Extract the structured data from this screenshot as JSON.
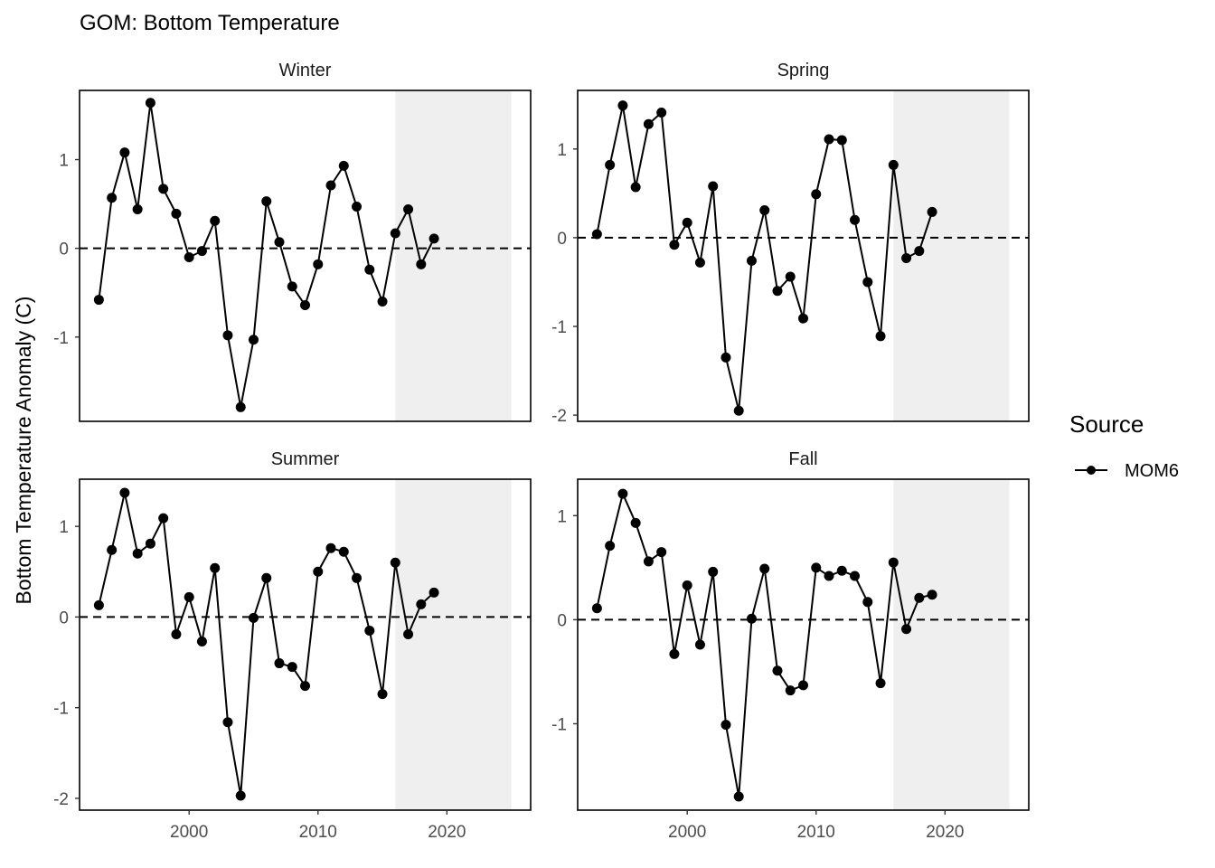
{
  "chart_data": {
    "type": "line",
    "title": "GOM: Bottom Temperature",
    "ylabel": "Bottom Temperature Anomaly (C)",
    "xlabel": "",
    "x_ticks": [
      2000,
      2010,
      2020
    ],
    "xlim": [
      1991.5,
      2026.5
    ],
    "shaded_region": [
      2016,
      2025
    ],
    "reference_line": 0,
    "legend": {
      "title": "Source",
      "entries": [
        "MOM6"
      ],
      "placement": "right"
    },
    "colors": {
      "series": "#000000",
      "shade": "#efefef",
      "panel_border": "#000000"
    },
    "years": [
      1993,
      1994,
      1995,
      1996,
      1997,
      1998,
      1999,
      2000,
      2001,
      2002,
      2003,
      2004,
      2005,
      2006,
      2007,
      2008,
      2009,
      2010,
      2011,
      2012,
      2013,
      2014,
      2015,
      2016,
      2017,
      2018,
      2019
    ],
    "panels": [
      {
        "name": "Winter",
        "ylim": [
          -1.95,
          1.78
        ],
        "y_ticks": [
          -1,
          0,
          1
        ],
        "y_tick_labels": [
          "-1",
          "0",
          "1"
        ],
        "values": [
          -0.58,
          0.57,
          1.08,
          0.44,
          1.64,
          0.67,
          0.39,
          -0.1,
          -0.03,
          0.31,
          -0.98,
          -1.79,
          -1.03,
          0.53,
          0.07,
          -0.43,
          -0.64,
          -0.18,
          0.71,
          0.93,
          0.47,
          -0.24,
          -0.6,
          0.17,
          0.44,
          -0.18,
          0.11
        ]
      },
      {
        "name": "Spring",
        "ylim": [
          -2.07,
          1.66
        ],
        "y_ticks": [
          -2,
          -1,
          0,
          1
        ],
        "y_tick_labels": [
          "-2",
          "-1",
          "0",
          "1"
        ],
        "values": [
          0.04,
          0.82,
          1.49,
          0.57,
          1.28,
          1.41,
          -0.08,
          0.17,
          -0.28,
          0.58,
          -1.35,
          -1.95,
          -0.26,
          0.31,
          -0.6,
          -0.44,
          -0.91,
          0.49,
          1.11,
          1.1,
          0.2,
          -0.5,
          -1.11,
          0.82,
          -0.23,
          -0.15,
          0.29
        ]
      },
      {
        "name": "Summer",
        "ylim": [
          -2.13,
          1.52
        ],
        "y_ticks": [
          -2,
          -1,
          0,
          1
        ],
        "y_tick_labels": [
          "-2",
          "-1",
          "0",
          "1"
        ],
        "values": [
          0.13,
          0.74,
          1.37,
          0.7,
          0.81,
          1.09,
          -0.19,
          0.22,
          -0.27,
          0.54,
          -1.16,
          -1.97,
          -0.01,
          0.43,
          -0.51,
          -0.55,
          -0.76,
          0.5,
          0.76,
          0.72,
          0.43,
          -0.15,
          -0.85,
          0.6,
          -0.19,
          0.14,
          0.27
        ]
      },
      {
        "name": "Fall",
        "ylim": [
          -1.83,
          1.35
        ],
        "y_ticks": [
          -1,
          0,
          1
        ],
        "y_tick_labels": [
          "-1",
          "0",
          "1"
        ],
        "values": [
          0.11,
          0.71,
          1.21,
          0.93,
          0.56,
          0.65,
          -0.33,
          0.33,
          -0.24,
          0.46,
          -1.01,
          -1.7,
          0.01,
          0.49,
          -0.49,
          -0.68,
          -0.63,
          0.5,
          0.42,
          0.47,
          0.42,
          0.17,
          -0.61,
          0.55,
          -0.09,
          0.21,
          0.24
        ]
      }
    ]
  }
}
